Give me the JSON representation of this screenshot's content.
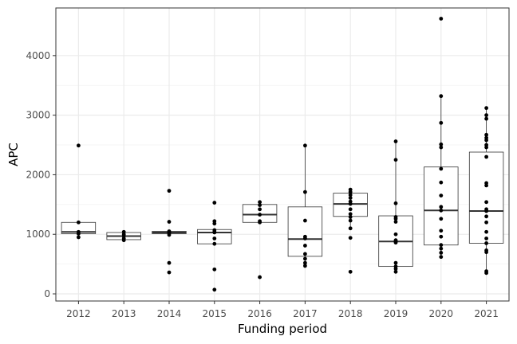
{
  "chart_data": {
    "type": "box",
    "xlabel": "Funding period",
    "ylabel": "APC",
    "ylim": [
      -120,
      4800
    ],
    "y_ticks": [
      0,
      1000,
      2000,
      3000,
      4000
    ],
    "y_tick_labels": [
      "0",
      "1000",
      "2000",
      "3000",
      "4000"
    ],
    "categories": [
      "2012",
      "2013",
      "2014",
      "2015",
      "2016",
      "2017",
      "2018",
      "2019",
      "2020",
      "2021"
    ],
    "grid": true,
    "legend": "none",
    "boxes": [
      {
        "category": "2012",
        "whisker_low": 950,
        "q1": 1010,
        "median": 1040,
        "q3": 1200,
        "whisker_high": 1200
      },
      {
        "category": "2013",
        "whisker_low": 900,
        "q1": 910,
        "median": 970,
        "q3": 1030,
        "whisker_high": 1040
      },
      {
        "category": "2014",
        "whisker_low": 990,
        "q1": 1010,
        "median": 1030,
        "q3": 1050,
        "whisker_high": 1060
      },
      {
        "category": "2015",
        "whisker_low": 840,
        "q1": 840,
        "median": 1030,
        "q3": 1080,
        "whisker_high": 1080
      },
      {
        "category": "2016",
        "whisker_low": 1200,
        "q1": 1200,
        "median": 1330,
        "q3": 1500,
        "whisker_high": 1540
      },
      {
        "category": "2017",
        "whisker_low": 470,
        "q1": 630,
        "median": 920,
        "q3": 1460,
        "whisker_high": 2490
      },
      {
        "category": "2018",
        "whisker_low": 1100,
        "q1": 1300,
        "median": 1510,
        "q3": 1690,
        "whisker_high": 1750
      },
      {
        "category": "2019",
        "whisker_low": 370,
        "q1": 460,
        "median": 880,
        "q3": 1310,
        "whisker_high": 2560
      },
      {
        "category": "2020",
        "whisker_low": 620,
        "q1": 820,
        "median": 1400,
        "q3": 2130,
        "whisker_high": 3320
      },
      {
        "category": "2021",
        "whisker_low": 350,
        "q1": 850,
        "median": 1390,
        "q3": 2380,
        "whisker_high": 3120
      }
    ],
    "points": [
      {
        "category": "2012",
        "values": [
          2490,
          1200,
          1040,
          1010,
          950
        ]
      },
      {
        "category": "2013",
        "values": [
          1040,
          1000,
          970,
          930,
          900
        ]
      },
      {
        "category": "2014",
        "values": [
          1730,
          1210,
          1050,
          1030,
          1020,
          990,
          520,
          360
        ]
      },
      {
        "category": "2015",
        "values": [
          1530,
          1220,
          1180,
          1070,
          1040,
          1030,
          930,
          840,
          410,
          70
        ]
      },
      {
        "category": "2016",
        "values": [
          1540,
          1490,
          1420,
          1330,
          1220,
          1200,
          280
        ]
      },
      {
        "category": "2017",
        "values": [
          2490,
          1710,
          1230,
          960,
          930,
          810,
          670,
          590,
          520,
          470
        ]
      },
      {
        "category": "2018",
        "values": [
          1750,
          1710,
          1660,
          1610,
          1550,
          1510,
          1420,
          1340,
          1290,
          1230,
          1100,
          940,
          370
        ]
      },
      {
        "category": "2019",
        "values": [
          2560,
          2250,
          1520,
          1290,
          1260,
          1210,
          1000,
          900,
          880,
          860,
          520,
          460,
          420,
          370
        ]
      },
      {
        "category": "2020",
        "values": [
          4620,
          3320,
          2870,
          2510,
          2460,
          2100,
          1870,
          1650,
          1460,
          1400,
          1260,
          1060,
          960,
          820,
          760,
          690,
          620
        ]
      },
      {
        "category": "2021",
        "values": [
          3120,
          3000,
          2940,
          2670,
          2620,
          2580,
          2500,
          2460,
          2300,
          1860,
          1820,
          1540,
          1420,
          1390,
          1300,
          1200,
          1040,
          930,
          850,
          730,
          700,
          380,
          350
        ]
      }
    ]
  }
}
